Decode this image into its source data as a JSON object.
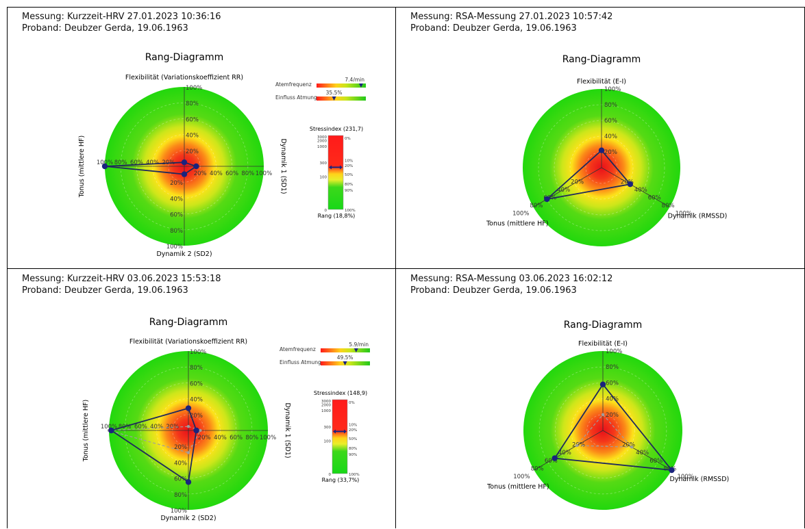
{
  "charts": [
    {
      "measurement": "Messung: Kurzzeit-HRV 27.01.2023 10:36:16",
      "subject": "Proband: Deubzer Gerda, 19.06.1963",
      "title": "Rang-Diagramm",
      "axis_labels": [
        "Flexibilität (Variationskoeffizient RR)",
        "Dynamik 1 (SD1)",
        "Dynamik 2 (SD2)",
        "Tonus (mittlere HF)"
      ],
      "ticks": [
        "20%",
        "40%",
        "60%",
        "80%",
        "100%"
      ],
      "atem_label": "Atemfrequenz",
      "atem_value": "7.4/min",
      "einfluss_label": "Einfluss Atmung",
      "einfluss_value": "35.5%",
      "stress_title": "Stressindex (231,7)",
      "stress_rank": "Rang (18,8%)"
    },
    {
      "measurement": "Messung: RSA-Messung 27.01.2023 10:57:42",
      "subject": "Proband: Deubzer Gerda, 19.06.1963",
      "title": "Rang-Diagramm",
      "axis_labels": [
        "Flexibilität (E-I)",
        "Dynamik (RMSSD)",
        "Tonus (mittlere HF)"
      ],
      "ticks": [
        "20%",
        "40%",
        "60%",
        "80%",
        "100%"
      ]
    },
    {
      "measurement": "Messung: Kurzzeit-HRV 03.06.2023 15:53:18",
      "subject": "Proband: Deubzer Gerda, 19.06.1963",
      "title": "Rang-Diagramm",
      "axis_labels": [
        "Flexibilität (Variationskoeffizient RR)",
        "Dynamik 1 (SD1)",
        "Dynamik 2 (SD2)",
        "Tonus (mittlere HF)"
      ],
      "ticks": [
        "20%",
        "40%",
        "60%",
        "80%",
        "100%"
      ],
      "atem_label": "Atemfrequenz",
      "atem_value": "5.9/min",
      "einfluss_label": "Einfluss Atmung",
      "einfluss_value": "49.5%",
      "stress_title": "Stressindex (148,9)",
      "stress_rank": "Rang (33,7%)"
    },
    {
      "measurement": "Messung: RSA-Messung 03.06.2023 16:02:12",
      "subject": "Proband: Deubzer Gerda, 19.06.1963",
      "title": "Rang-Diagramm",
      "axis_labels": [
        "Flexibilität (E-I)",
        "Dynamik (RMSSD)",
        "Tonus (mittlere HF)"
      ],
      "ticks": [
        "20%",
        "40%",
        "60%",
        "80%",
        "100%"
      ]
    }
  ],
  "stress_scale": [
    "3000",
    "2000",
    "1000",
    "300",
    "100",
    "0"
  ],
  "stress_pct": [
    "0%",
    "10%",
    "20%",
    "50%",
    "80%",
    "90%",
    "100%"
  ],
  "colors": {
    "series": "#1f2a5c",
    "marker": "#1a237e",
    "previous": "#9e9e9e"
  },
  "chart_data": [
    {
      "type": "radar",
      "axes": [
        "Flexibilität (Variationskoeffizient RR)",
        "Dynamik 1 (SD1)",
        "Dynamik 2 (SD2)",
        "Tonus (mittlere HF)"
      ],
      "series": [
        {
          "values": [
            5,
            15,
            10,
            100
          ]
        }
      ],
      "range": [
        0,
        100
      ],
      "atemfrequenz": 7.4,
      "einfluss_atmung": 35.5,
      "stressindex": 231.7,
      "stress_rang": 18.8
    },
    {
      "type": "radar",
      "axes": [
        "Flexibilität (E-I)",
        "Dynamik (RMSSD)",
        "Tonus (mittlere HF)"
      ],
      "series": [
        {
          "values": [
            22,
            42,
            80
          ]
        }
      ],
      "range": [
        0,
        100
      ]
    },
    {
      "type": "radar",
      "axes": [
        "Flexibilität (Variationskoeffizient RR)",
        "Dynamik 1 (SD1)",
        "Dynamik 2 (SD2)",
        "Tonus (mittlere HF)"
      ],
      "series": [
        {
          "values": [
            28,
            10,
            65,
            97
          ]
        },
        {
          "values": [
            5,
            15,
            28,
            100
          ]
        }
      ],
      "range": [
        0,
        100
      ],
      "atemfrequenz": 5.9,
      "einfluss_atmung": 49.5,
      "stressindex": 148.9,
      "stress_rang": 33.7
    },
    {
      "type": "radar",
      "axes": [
        "Flexibilität (E-I)",
        "Dynamik (RMSSD)",
        "Tonus (mittlere HF)"
      ],
      "series": [
        {
          "values": [
            58,
            100,
            70
          ]
        },
        {
          "values": [
            20,
            42,
            38
          ]
        }
      ],
      "range": [
        0,
        100
      ]
    }
  ]
}
